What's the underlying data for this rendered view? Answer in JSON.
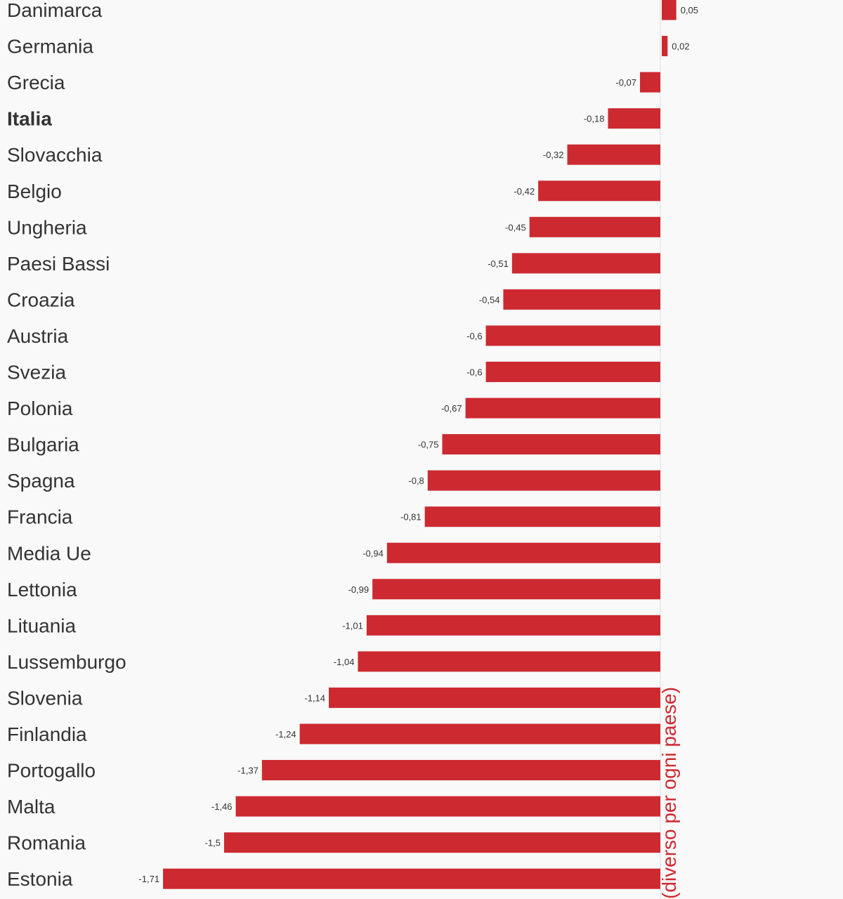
{
  "chart_data": {
    "type": "bar",
    "orientation": "horizontal",
    "categories": [
      "Danimarca",
      "Germania",
      "Grecia",
      "Italia",
      "Slovacchia",
      "Belgio",
      "Ungheria",
      "Paesi Bassi",
      "Croazia",
      "Austria",
      "Svezia",
      "Polonia",
      "Bulgaria",
      "Spagna",
      "Francia",
      "Media Ue",
      "Lettonia",
      "Lituania",
      "Lussemburgo",
      "Slovenia",
      "Finlandia",
      "Portogallo",
      "Malta",
      "Romania",
      "Estonia"
    ],
    "values": [
      0.05,
      0.02,
      -0.07,
      -0.18,
      -0.32,
      -0.42,
      -0.45,
      -0.51,
      -0.54,
      -0.6,
      -0.6,
      -0.67,
      -0.75,
      -0.8,
      -0.81,
      -0.94,
      -0.99,
      -1.01,
      -1.04,
      -1.14,
      -1.24,
      -1.37,
      -1.46,
      -1.5,
      -1.71
    ],
    "value_labels": [
      "0,05",
      "0,02",
      "-0,07",
      "-0,18",
      "-0,32",
      "-0,42",
      "-0,45",
      "-0,51",
      "-0,54",
      "-0,6",
      "-0,6",
      "-0,67",
      "-0,75",
      "-0,8",
      "-0,81",
      "-0,94",
      "-0,99",
      "-1,01",
      "-1,04",
      "-1,14",
      "-1,24",
      "-1,37",
      "-1,46",
      "-1,5",
      "-1,71"
    ],
    "highlight_category": "Italia",
    "axis_title": "(diverso per ogni paese)",
    "bar_color": "#cc2a30",
    "axis_title_color": "#cc2a30",
    "label_color": "#333333",
    "background_color": "#f9f9f9"
  }
}
